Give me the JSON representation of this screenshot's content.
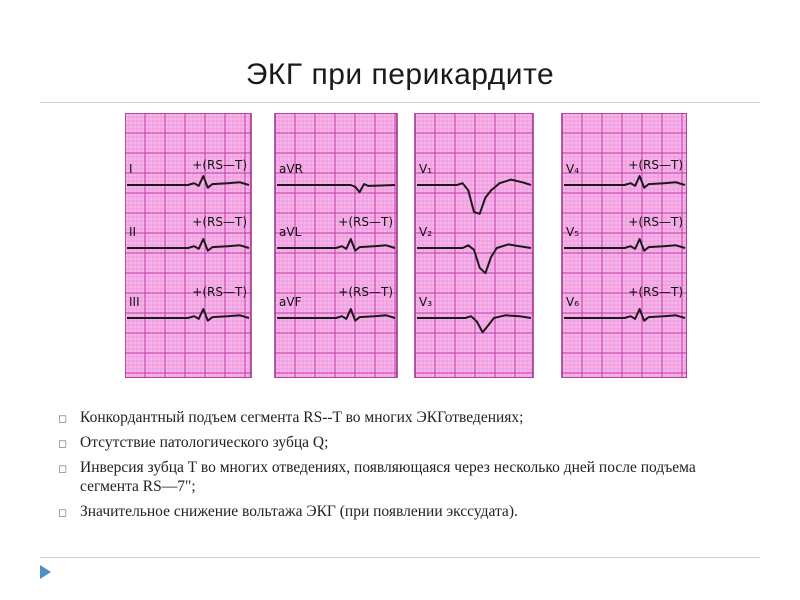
{
  "title": "ЭКГ при перикардите",
  "ecg": {
    "panels": [
      {
        "leads": [
          {
            "name": "I",
            "annotation": "+(RS—T)"
          },
          {
            "name": "II",
            "annotation": "+(RS—T)"
          },
          {
            "name": "III",
            "annotation": "+(RS—T)"
          }
        ]
      },
      {
        "leads": [
          {
            "name": "aVR",
            "annotation": ""
          },
          {
            "name": "aVL",
            "annotation": "+(RS—T)"
          },
          {
            "name": "aVF",
            "annotation": "+(RS—T)"
          }
        ]
      },
      {
        "leads": [
          {
            "name": "V₁",
            "annotation": ""
          },
          {
            "name": "V₂",
            "annotation": ""
          },
          {
            "name": "V₃",
            "annotation": ""
          }
        ]
      },
      {
        "leads": [
          {
            "name": "V₄",
            "annotation": "+(RS—T)"
          },
          {
            "name": "V₅",
            "annotation": "+(RS—T)"
          },
          {
            "name": "V₆",
            "annotation": "+(RS—T)"
          }
        ]
      }
    ],
    "colors": {
      "paper": "#f7b3ea",
      "grid_major": "#c23aa8",
      "grid_minor": "#e58ad3",
      "trace": "#1a1a1a"
    }
  },
  "bullets": [
    {
      "text": "Конкордантный подъем сегмента RS--T во многих ЭКГотведениях;"
    },
    {
      "text": "Отсутствие патологического зубца Q;"
    },
    {
      "text": "Инверсия зубца T во  многих отведениях,  появляющаяся через    несколько дней после подъема  сегмента RS—7\";"
    },
    {
      "text": "Значительное снижение  вольтажа ЭКГ (при появлении экссудата)."
    }
  ],
  "bullet_icon": "hollow-square-arrow-icon",
  "corner_icon": "blue-triangle-icon"
}
